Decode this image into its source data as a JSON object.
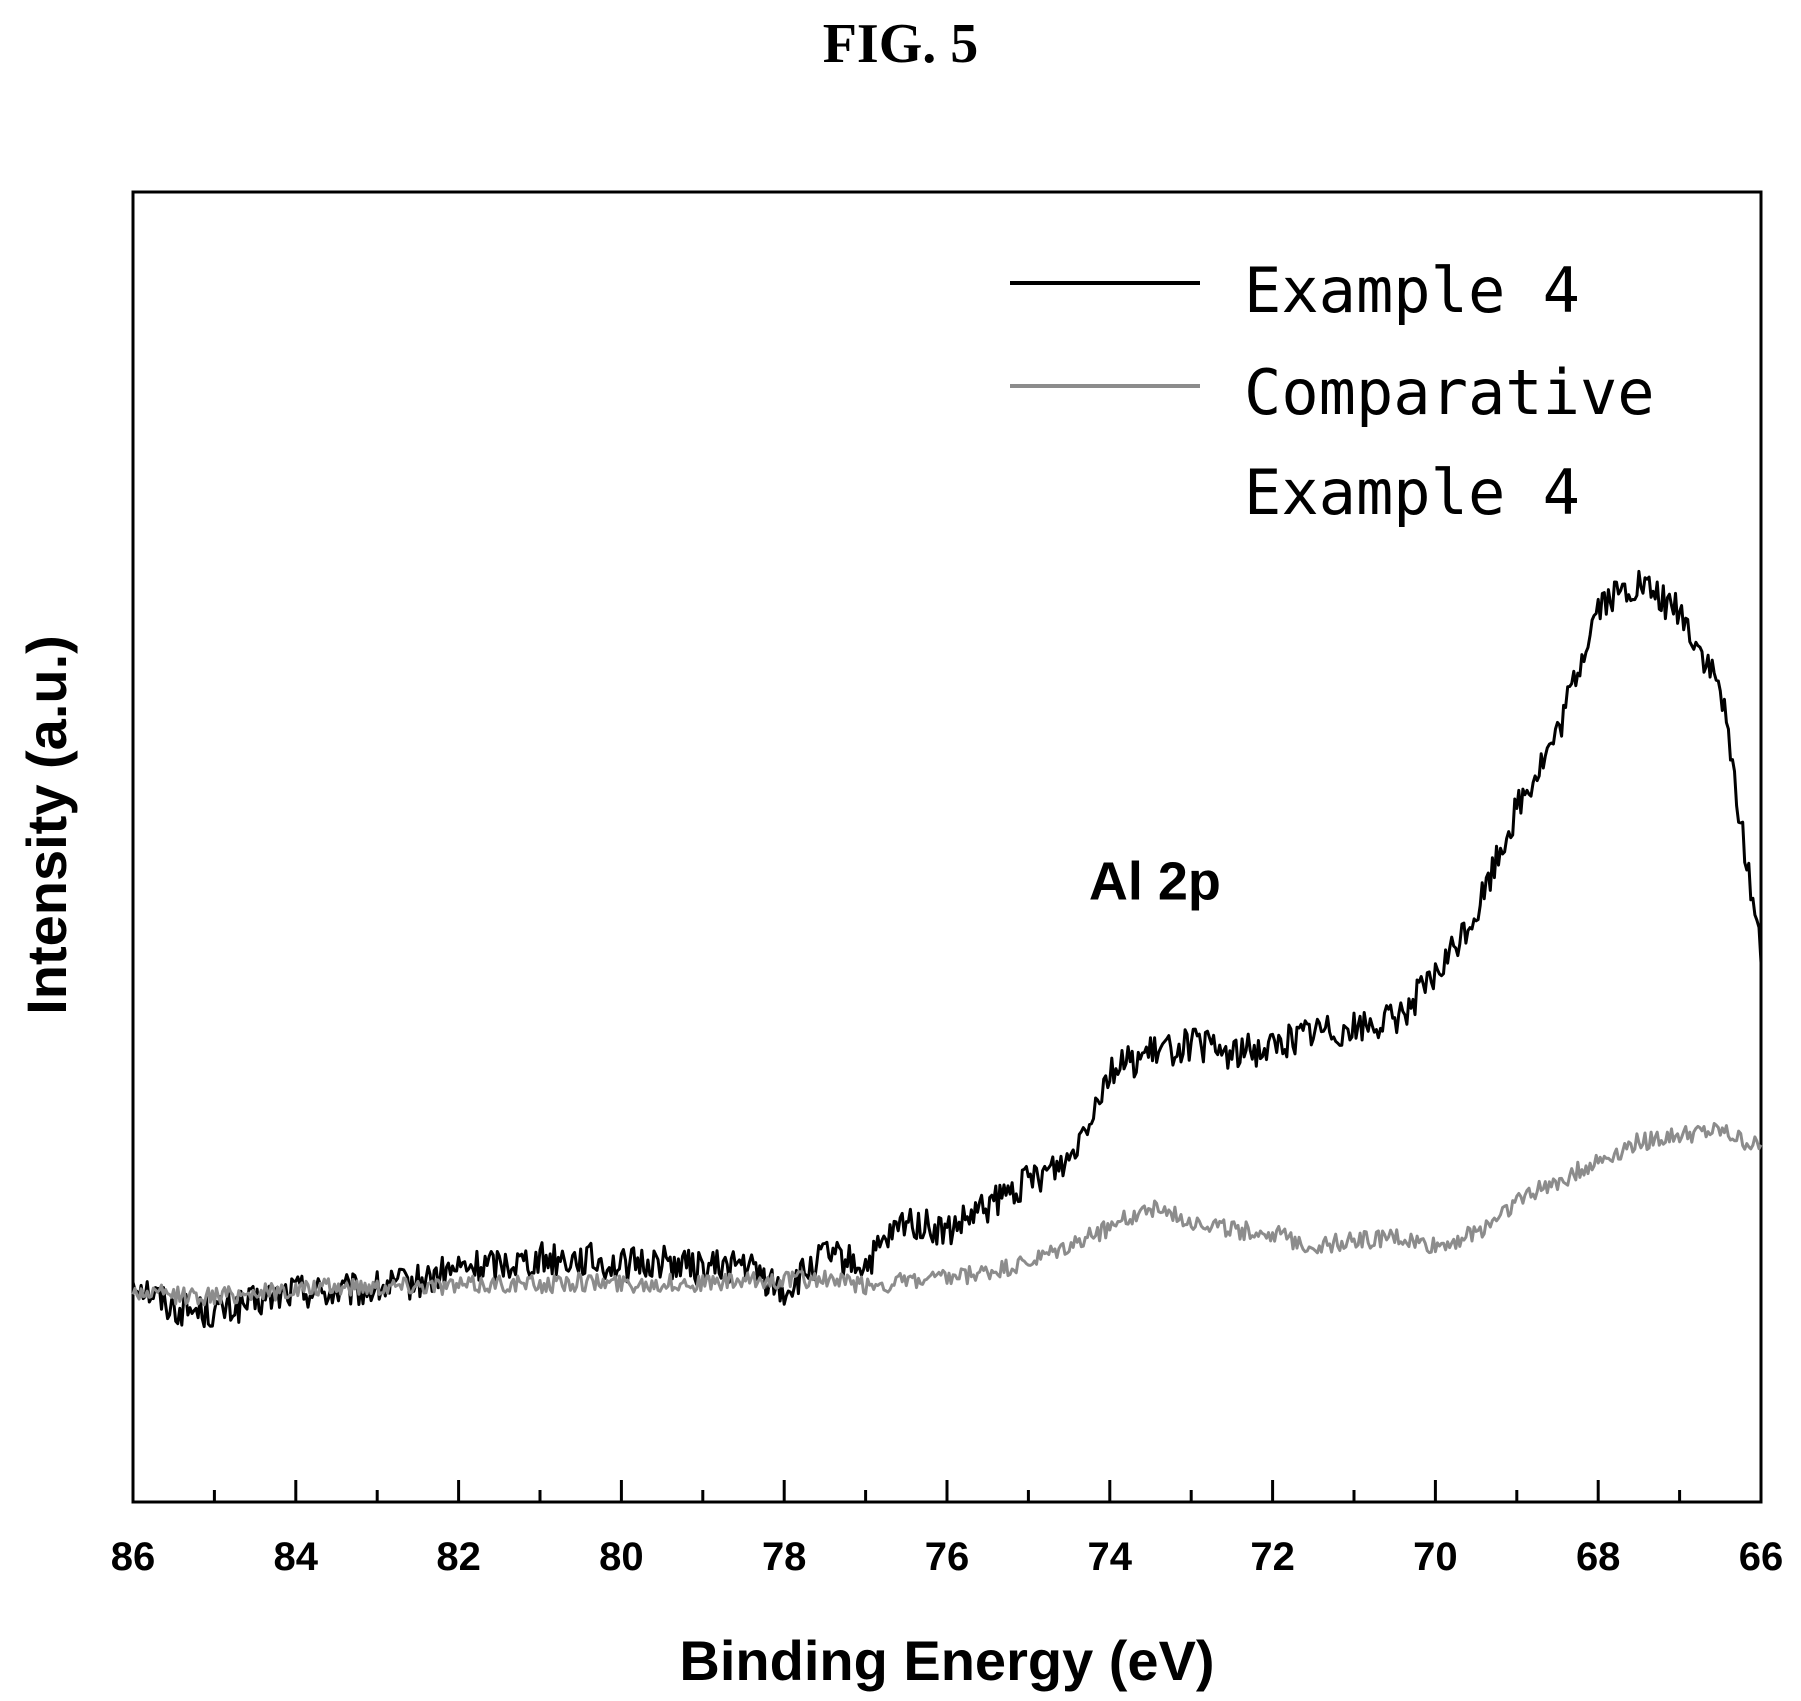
{
  "figure_title": "FIG. 5",
  "chart_data": {
    "type": "line",
    "title": "",
    "xlabel": "Binding Energy (eV)",
    "ylabel": "Intensity (a.u.)",
    "xlim": [
      86,
      66
    ],
    "x_reversed": true,
    "ylim": [
      0,
      100
    ],
    "y_ticks_shown": false,
    "grid": false,
    "legend_position": "top-right",
    "x_ticks": [
      86,
      84,
      82,
      80,
      78,
      76,
      74,
      72,
      70,
      68,
      66
    ],
    "x_tick_labels": [
      "86",
      "84",
      "82",
      "80",
      "78",
      "76",
      "74",
      "72",
      "70",
      "68",
      "66"
    ],
    "annotation": "Al 2p",
    "annotation_at": {
      "x": 73.2,
      "y": 46
    },
    "series": [
      {
        "name": "Example 4",
        "color": "#000000",
        "x": [
          86,
          85.5,
          85.0,
          84.5,
          84,
          83.5,
          83,
          82.5,
          82,
          81.5,
          81,
          80.5,
          80,
          79.5,
          79,
          78.5,
          78,
          77.5,
          77,
          76.5,
          76,
          75.5,
          75,
          74.5,
          74,
          73.5,
          73,
          72.5,
          72,
          71.5,
          71,
          70.5,
          70,
          69.5,
          69,
          68.5,
          68,
          67.5,
          67,
          66.5,
          66
        ],
        "y": [
          17.0,
          14.8,
          14.5,
          15.2,
          16.2,
          16.0,
          16.3,
          16.8,
          17.8,
          18.2,
          18.6,
          18.6,
          18.0,
          18.4,
          17.8,
          18.2,
          16.0,
          18.8,
          18.0,
          21.5,
          20.5,
          22.5,
          24.5,
          26.2,
          33.0,
          34.2,
          35.0,
          34.2,
          34.8,
          36.0,
          36.2,
          36.8,
          40.0,
          45.0,
          53.0,
          58.5,
          68.5,
          70.0,
          68.0,
          62.0,
          42.0
        ]
      },
      {
        "name": "Comparative Example 4",
        "color": "#8c8c8c",
        "x": [
          86,
          85.5,
          85.0,
          84.5,
          84,
          83.5,
          83,
          82.5,
          82,
          81.5,
          81,
          80.5,
          80,
          79.5,
          79,
          78.5,
          78,
          77.5,
          77,
          76.5,
          76,
          75.5,
          75,
          74.5,
          74,
          73.5,
          73,
          72.5,
          72,
          71.5,
          71,
          70.5,
          70,
          69.5,
          69,
          68.5,
          68,
          67.5,
          67,
          66.5,
          66
        ],
        "y": [
          16.0,
          15.8,
          15.7,
          16.0,
          16.2,
          16.4,
          16.5,
          16.6,
          16.5,
          16.7,
          16.6,
          16.8,
          16.7,
          16.7,
          16.7,
          16.8,
          17.0,
          17.0,
          16.5,
          16.8,
          17.0,
          17.5,
          18.2,
          19.5,
          21.0,
          22.5,
          21.5,
          20.8,
          20.5,
          19.5,
          20.0,
          20.2,
          19.5,
          20.5,
          23.0,
          24.5,
          26.0,
          27.5,
          28.0,
          28.3,
          27.0
        ]
      }
    ]
  }
}
